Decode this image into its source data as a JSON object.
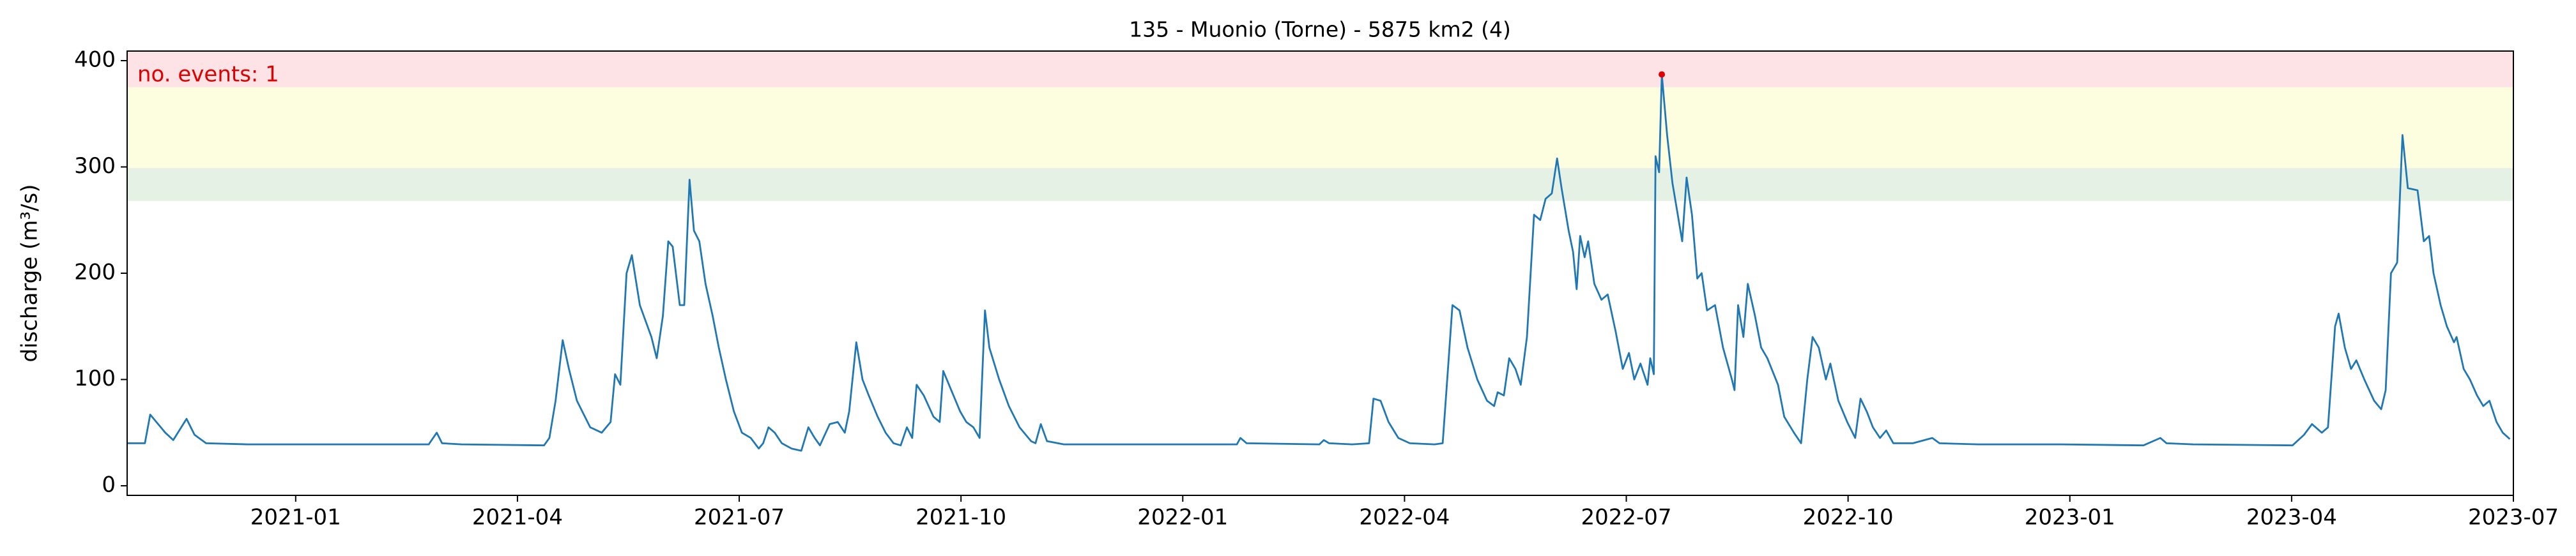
{
  "chart_data": {
    "type": "line",
    "title": "135 - Muonio (Torne) - 5875 km2 (4)",
    "y_label": "discharge (m³/s)",
    "annotation": "no. events: 1",
    "annotation_color": "#e00000",
    "color": "#1f77b4",
    "xlim": [
      2020.81,
      2023.5
    ],
    "ylim": [
      -9,
      409
    ],
    "xticks": [
      {
        "value": 2021.0,
        "label": "2021-01"
      },
      {
        "value": 2021.25,
        "label": "2021-04"
      },
      {
        "value": 2021.5,
        "label": "2021-07"
      },
      {
        "value": 2021.75,
        "label": "2021-10"
      },
      {
        "value": 2022.0,
        "label": "2022-01"
      },
      {
        "value": 2022.25,
        "label": "2022-04"
      },
      {
        "value": 2022.5,
        "label": "2022-07"
      },
      {
        "value": 2022.75,
        "label": "2022-10"
      },
      {
        "value": 2023.0,
        "label": "2023-01"
      },
      {
        "value": 2023.25,
        "label": "2023-04"
      },
      {
        "value": 2023.5,
        "label": "2023-07"
      }
    ],
    "yticks": [
      0,
      100,
      200,
      300,
      400
    ],
    "bands": [
      {
        "from": 268,
        "to": 299,
        "color": "#e4f1e4"
      },
      {
        "from": 299,
        "to": 375,
        "color": "#fdfde0"
      },
      {
        "from": 375,
        "to": 409,
        "color": "#fde3e6"
      }
    ],
    "events": {
      "x": [
        2022.54
      ],
      "y": [
        387
      ],
      "color": "#e00000"
    },
    "x": [
      2020.81,
      2020.83,
      2020.836,
      2020.843,
      2020.853,
      2020.862,
      2020.877,
      2020.886,
      2020.899,
      2020.946,
      2021.039,
      2021.15,
      2021.159,
      2021.165,
      2021.187,
      2021.28,
      2021.286,
      2021.293,
      2021.301,
      2021.308,
      2021.317,
      2021.332,
      2021.345,
      2021.355,
      2021.36,
      2021.366,
      2021.373,
      2021.379,
      2021.388,
      2021.401,
      2021.407,
      2021.414,
      2021.42,
      2021.425,
      2021.433,
      2021.438,
      2021.444,
      2021.449,
      2021.455,
      2021.462,
      2021.47,
      2021.477,
      2021.485,
      2021.494,
      2021.503,
      2021.513,
      2021.522,
      2021.527,
      2021.533,
      2021.54,
      2021.548,
      2021.559,
      2021.57,
      2021.578,
      2021.585,
      2021.591,
      2021.602,
      2021.611,
      2021.619,
      2021.624,
      2021.632,
      2021.639,
      2021.646,
      2021.656,
      2021.665,
      2021.674,
      2021.682,
      2021.689,
      2021.695,
      2021.7,
      2021.708,
      2021.719,
      2021.726,
      2021.73,
      2021.739,
      2021.749,
      2021.756,
      2021.764,
      2021.771,
      2021.777,
      2021.782,
      2021.793,
      2021.804,
      2021.816,
      2021.829,
      2021.834,
      2021.84,
      2021.847,
      2021.866,
      2021.968,
      2022.061,
      2022.065,
      2022.072,
      2022.154,
      2022.159,
      2022.165,
      2022.191,
      2022.21,
      2022.215,
      2022.223,
      2022.232,
      2022.243,
      2022.256,
      2022.284,
      2022.293,
      2022.299,
      2022.304,
      2022.312,
      2022.321,
      2022.332,
      2022.343,
      2022.351,
      2022.355,
      2022.362,
      2022.368,
      2022.375,
      2022.381,
      2022.388,
      2022.396,
      2022.403,
      2022.409,
      2022.416,
      2022.422,
      2022.427,
      2022.435,
      2022.44,
      2022.444,
      2022.448,
      2022.453,
      2022.457,
      2022.464,
      2022.472,
      2022.479,
      2022.488,
      2022.496,
      2022.503,
      2022.509,
      2022.516,
      2022.524,
      2022.527,
      2022.531,
      2022.533,
      2022.537,
      2022.54,
      2022.546,
      2022.552,
      2022.557,
      2022.563,
      2022.568,
      2022.574,
      2022.58,
      2022.585,
      2022.591,
      2022.6,
      2022.609,
      2022.619,
      2022.622,
      2022.626,
      2022.632,
      2022.637,
      2022.645,
      2022.652,
      2022.659,
      2022.671,
      2022.678,
      2022.689,
      2022.697,
      2022.704,
      2022.71,
      2022.717,
      2022.725,
      2022.73,
      2022.739,
      2022.749,
      2022.758,
      2022.764,
      2022.771,
      2022.778,
      2022.786,
      2022.793,
      2022.801,
      2022.823,
      2022.845,
      2022.853,
      2022.897,
      2022.99,
      2023.083,
      2023.102,
      2023.109,
      2023.139,
      2023.251,
      2023.264,
      2023.273,
      2023.284,
      2023.291,
      2023.299,
      2023.303,
      2023.31,
      2023.317,
      2023.323,
      2023.332,
      2023.343,
      2023.351,
      2023.356,
      2023.362,
      2023.369,
      2023.375,
      2023.381,
      2023.392,
      2023.399,
      2023.405,
      2023.41,
      2023.418,
      2023.425,
      2023.433,
      2023.436,
      2023.444,
      2023.451,
      2023.459,
      2023.466,
      2023.473,
      2023.481,
      2023.488,
      2023.496
    ],
    "values": [
      40,
      40,
      67,
      60,
      50,
      43,
      63,
      48,
      40,
      39,
      39,
      39,
      50,
      40,
      39,
      38,
      45,
      80,
      137,
      110,
      80,
      55,
      50,
      60,
      105,
      95,
      200,
      217,
      170,
      140,
      120,
      160,
      230,
      225,
      170,
      170,
      288,
      240,
      230,
      190,
      160,
      130,
      100,
      70,
      50,
      45,
      35,
      40,
      55,
      50,
      40,
      35,
      33,
      55,
      45,
      38,
      58,
      60,
      50,
      70,
      135,
      100,
      85,
      65,
      50,
      40,
      38,
      55,
      45,
      95,
      85,
      65,
      60,
      108,
      90,
      70,
      60,
      55,
      45,
      165,
      130,
      100,
      75,
      55,
      42,
      40,
      58,
      42,
      39,
      39,
      39,
      45,
      40,
      39,
      43,
      40,
      39,
      40,
      82,
      80,
      60,
      45,
      40,
      39,
      40,
      110,
      170,
      165,
      130,
      100,
      80,
      75,
      88,
      85,
      120,
      110,
      95,
      140,
      255,
      250,
      270,
      275,
      308,
      280,
      240,
      220,
      185,
      235,
      215,
      230,
      190,
      175,
      180,
      145,
      110,
      125,
      100,
      115,
      95,
      120,
      105,
      310,
      295,
      387,
      330,
      285,
      260,
      230,
      290,
      255,
      195,
      200,
      165,
      170,
      130,
      100,
      90,
      170,
      140,
      190,
      160,
      130,
      120,
      95,
      65,
      50,
      40,
      100,
      140,
      130,
      100,
      115,
      80,
      60,
      45,
      82,
      70,
      55,
      45,
      52,
      40,
      40,
      45,
      40,
      39,
      39,
      38,
      45,
      40,
      39,
      38,
      48,
      58,
      50,
      55,
      150,
      162,
      130,
      110,
      118,
      100,
      80,
      72,
      90,
      200,
      210,
      330,
      280,
      278,
      230,
      235,
      200,
      170,
      150,
      135,
      140,
      110,
      100,
      85,
      75,
      80,
      60,
      50,
      44
    ]
  }
}
